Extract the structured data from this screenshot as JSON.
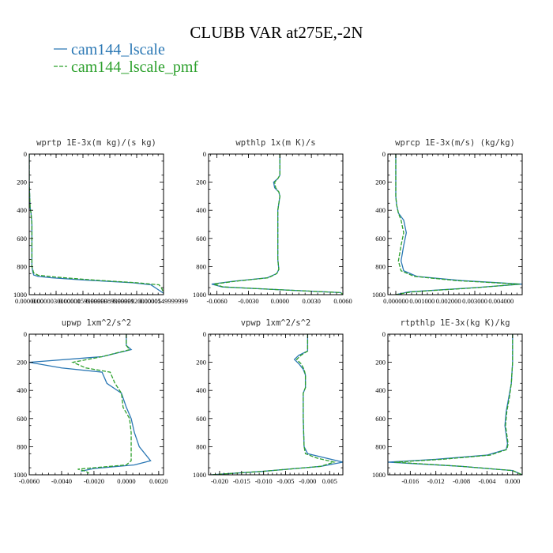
{
  "title": "CLUBB VAR at275E,-2N",
  "colors": {
    "cam144_lscale": "#2a77b4",
    "cam144_lscale_pmf": "#2ca02c"
  },
  "legend": [
    {
      "label": "cam144_lscale",
      "color": "#2a77b4",
      "dash": "solid"
    },
    {
      "label": "cam144_lscale_pmf",
      "color": "#2ca02c",
      "dash": "dashed"
    }
  ],
  "chart_data": [
    {
      "type": "line",
      "title": "wprtp  1E-3x(m kg)/(s kg)",
      "xlim": [
        0.0,
        1.49999999e-05
      ],
      "ylim": [
        1000,
        0
      ],
      "xticks": [
        0.0,
        3e-06,
        6e-06,
        9e-06,
        1.2e-05,
        1.5e-05
      ],
      "xtick_labels": [
        "0.0000000",
        "0.0000030000001",
        "0.0000059999999",
        "0.0000089999999",
        "0.0000120000005",
        "0.0000149999999"
      ],
      "yticks": [
        0,
        200,
        400,
        600,
        800,
        1000
      ],
      "ytick_labels": [
        "0",
        "200",
        "400",
        "600",
        "800",
        "1000"
      ],
      "series": [
        {
          "name": "cam144_lscale",
          "x": [
            0.0,
            0.0,
            1e-07,
            2e-07,
            3e-07,
            3e-07,
            3e-07,
            4e-07,
            5e-07,
            1e-06,
            2.5e-06,
            6e-06,
            1.15e-05,
            1.36e-05,
            1.43e-05,
            1.49999e-05
          ],
          "y": [
            0,
            200,
            380,
            420,
            500,
            650,
            800,
            840,
            860,
            870,
            880,
            895,
            915,
            930,
            960,
            990
          ]
        },
        {
          "name": "cam144_lscale_pmf",
          "x": [
            0.0,
            0.0,
            1e-07,
            2e-07,
            3e-07,
            3e-07,
            3e-07,
            5e-07,
            1e-06,
            3e-06,
            7e-06,
            1.2e-05,
            1.45e-05,
            1.48e-05,
            1.49999e-05
          ],
          "y": [
            0,
            200,
            380,
            420,
            500,
            650,
            800,
            845,
            862,
            875,
            895,
            915,
            930,
            955,
            990
          ]
        }
      ]
    },
    {
      "type": "line",
      "title": "wpthlp  1x(m K)/s",
      "xlim": [
        -0.0068,
        0.006
      ],
      "ylim": [
        1000,
        0
      ],
      "xticks": [
        -0.006,
        -0.003,
        0.0,
        0.003,
        0.006
      ],
      "xtick_labels": [
        "-0.0060",
        "-0.0030",
        "0.0000",
        "0.0030",
        "0.0060"
      ],
      "yticks": [
        0,
        200,
        400,
        600,
        800,
        1000
      ],
      "ytick_labels": [
        "0",
        "200",
        "400",
        "600",
        "800",
        "1000"
      ],
      "series": [
        {
          "name": "cam144_lscale",
          "x": [
            0.0,
            0.0,
            -0.0002,
            -0.0006,
            -0.0005,
            -0.0001,
            0.0,
            -0.0002,
            -0.0002,
            -0.0002,
            -0.0001,
            -0.0003,
            -0.0012,
            -0.0045,
            -0.0065,
            -0.0055,
            0.0,
            0.0058,
            0.006
          ],
          "y": [
            0,
            150,
            175,
            200,
            240,
            270,
            300,
            400,
            600,
            750,
            820,
            850,
            880,
            905,
            925,
            945,
            965,
            985,
            1000
          ]
        },
        {
          "name": "cam144_lscale_pmf",
          "x": [
            0.0,
            0.0,
            -0.0002,
            -0.0005,
            -0.0004,
            -0.0001,
            0.0,
            -0.0002,
            -0.0002,
            -0.0002,
            -0.0001,
            -0.0003,
            -0.0011,
            -0.0043,
            -0.0063,
            -0.0054,
            0.0,
            0.0058,
            0.006
          ],
          "y": [
            0,
            150,
            175,
            200,
            240,
            270,
            300,
            400,
            600,
            750,
            820,
            850,
            880,
            905,
            925,
            945,
            965,
            985,
            1000
          ]
        }
      ]
    },
    {
      "type": "line",
      "title": "wprcp  1E-3x(m/s) (kg/kg)",
      "xlim": [
        -0.0003,
        0.0048
      ],
      "ylim": [
        1000,
        0
      ],
      "xticks": [
        0.0,
        0.001,
        0.002,
        0.003,
        0.004
      ],
      "xtick_labels": [
        "0.000000",
        "0.001000",
        "0.002000",
        "0.003000",
        "0.004000"
      ],
      "yticks": [
        0,
        200,
        400,
        600,
        800,
        1000
      ],
      "ytick_labels": [
        "0",
        "200",
        "400",
        "600",
        "800",
        "1000"
      ],
      "series": [
        {
          "name": "cam144_lscale",
          "x": [
            0.0,
            0.0,
            3e-05,
            0.0001,
            0.0003,
            0.0004,
            0.0003,
            0.0002,
            0.0003,
            0.0008,
            0.0025,
            0.0048,
            0.003,
            0.0005,
            0.0
          ],
          "y": [
            0,
            300,
            360,
            420,
            470,
            560,
            650,
            760,
            830,
            870,
            900,
            925,
            950,
            980,
            1000
          ]
        },
        {
          "name": "cam144_lscale_pmf",
          "x": [
            0.0,
            0.0,
            3e-05,
            0.0001,
            0.0002,
            0.0003,
            0.0002,
            0.0001,
            0.0002,
            0.0007,
            0.0023,
            0.0047,
            0.0031,
            0.0006,
            0.0
          ],
          "y": [
            0,
            300,
            360,
            420,
            470,
            560,
            650,
            760,
            830,
            870,
            900,
            925,
            950,
            980,
            1000
          ]
        }
      ]
    },
    {
      "type": "line",
      "title": "upwp  1xm^2/s^2",
      "xlim": [
        -0.006,
        0.0023
      ],
      "ylim": [
        1000,
        0
      ],
      "xticks": [
        -0.006,
        -0.004,
        -0.002,
        0.0,
        0.002
      ],
      "xtick_labels": [
        "-0.0060",
        "-0.0040",
        "-0.0020",
        "0.0000",
        "0.0020"
      ],
      "yticks": [
        0,
        200,
        400,
        600,
        800,
        1000
      ],
      "ytick_labels": [
        "0",
        "200",
        "400",
        "600",
        "800",
        "1000"
      ],
      "series": [
        {
          "name": "cam144_lscale",
          "x": [
            0.0,
            0.0,
            0.0003,
            -0.0015,
            -0.006,
            -0.004,
            -0.0015,
            -0.0012,
            -0.0003,
            0.0,
            0.0003,
            0.0005,
            0.0008,
            0.0015,
            0.0005,
            -0.002,
            -0.0028
          ],
          "y": [
            0,
            80,
            110,
            160,
            200,
            240,
            270,
            350,
            420,
            520,
            600,
            700,
            800,
            900,
            930,
            955,
            975
          ]
        },
        {
          "name": "cam144_lscale_pmf",
          "x": [
            0.0,
            0.0,
            0.0002,
            -0.0015,
            -0.0033,
            -0.0025,
            -0.001,
            -0.0007,
            -0.0003,
            -0.0002,
            0.0002,
            0.0003,
            0.0003,
            0.0003,
            0.0,
            -0.003,
            -0.0025,
            -0.0023
          ],
          "y": [
            0,
            80,
            110,
            160,
            200,
            240,
            270,
            350,
            420,
            520,
            600,
            700,
            800,
            900,
            930,
            960,
            975,
            990
          ]
        }
      ]
    },
    {
      "type": "line",
      "title": "vpwp  1xm^2/s^2",
      "xlim": [
        -0.0225,
        0.008
      ],
      "ylim": [
        1000,
        0
      ],
      "xticks": [
        -0.02,
        -0.015,
        -0.01,
        -0.005,
        0.0,
        0.005
      ],
      "xtick_labels": [
        "-0.020",
        "-0.015",
        "-0.010",
        "-0.005",
        "-0.000",
        "0.005"
      ],
      "yticks": [
        0,
        200,
        400,
        600,
        800,
        1000
      ],
      "ytick_labels": [
        "0",
        "200",
        "400",
        "600",
        "800",
        "1000"
      ],
      "series": [
        {
          "name": "cam144_lscale",
          "x": [
            0.0,
            0.0,
            -0.002,
            -0.003,
            -0.002,
            -0.001,
            -0.0005,
            -0.0005,
            -0.001,
            -0.001,
            -0.0008,
            0.0,
            0.004,
            0.008,
            0.003,
            -0.01,
            -0.022
          ],
          "y": [
            0,
            120,
            150,
            180,
            210,
            250,
            290,
            380,
            420,
            600,
            800,
            850,
            880,
            910,
            940,
            975,
            1000
          ]
        },
        {
          "name": "cam144_lscale_pmf",
          "x": [
            0.0,
            0.0,
            -0.0015,
            -0.0025,
            -0.0015,
            -0.0008,
            -0.0005,
            -0.0005,
            -0.001,
            -0.001,
            -0.0008,
            -0.0005,
            0.002,
            0.006,
            0.003,
            -0.01,
            -0.022
          ],
          "y": [
            0,
            120,
            150,
            180,
            210,
            250,
            290,
            380,
            420,
            600,
            800,
            850,
            880,
            910,
            940,
            975,
            1000
          ]
        }
      ]
    },
    {
      "type": "line",
      "title": "rtpthlp  1E-3x(kg K)/kg",
      "xlim": [
        -0.0195,
        0.0015
      ],
      "ylim": [
        1000,
        0
      ],
      "xticks": [
        -0.016,
        -0.012,
        -0.008,
        -0.004,
        0.0
      ],
      "xtick_labels": [
        "-0.016",
        "-0.012",
        "-0.008",
        "-0.004",
        "0.000"
      ],
      "yticks": [
        0,
        200,
        400,
        600,
        800,
        1000
      ],
      "ytick_labels": [
        "0",
        "200",
        "400",
        "600",
        "800",
        "1000"
      ],
      "series": [
        {
          "name": "cam144_lscale",
          "x": [
            0.0,
            0.0,
            -0.0002,
            -0.0006,
            -0.001,
            -0.0012,
            -0.0008,
            -0.001,
            -0.004,
            -0.012,
            -0.0195,
            -0.008,
            0.0,
            0.0015
          ],
          "y": [
            0,
            200,
            350,
            450,
            550,
            650,
            780,
            820,
            860,
            890,
            910,
            940,
            970,
            1000
          ]
        },
        {
          "name": "cam144_lscale_pmf",
          "x": [
            0.0,
            0.0,
            -0.0002,
            -0.0005,
            -0.0009,
            -0.0011,
            -0.0007,
            -0.0009,
            -0.0035,
            -0.011,
            -0.0185,
            -0.008,
            0.0,
            0.0015
          ],
          "y": [
            0,
            200,
            350,
            450,
            550,
            650,
            780,
            820,
            860,
            890,
            910,
            940,
            970,
            1000
          ]
        }
      ]
    }
  ]
}
